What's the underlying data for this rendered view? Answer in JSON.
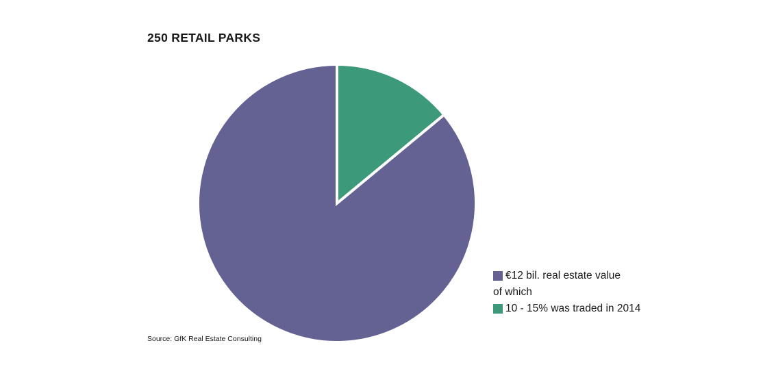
{
  "chart_data": {
    "type": "pie",
    "title": "250 RETAIL PARKS",
    "slices": [
      {
        "label": "10 - 15% was traded in 2014",
        "value": 14,
        "color": "#3c9a7b"
      },
      {
        "label": "€12 bil. real estate value",
        "value": 86,
        "color": "#646193"
      }
    ],
    "start_angle_deg": 0,
    "direction": "clockwise",
    "legend_placement": "bottom-right"
  },
  "legend": {
    "line1": "€12 bil. real estate value",
    "line2": "of which",
    "line3": "10 - 15% was traded in 2014"
  },
  "source": "Source: GfK Real Estate Consulting"
}
